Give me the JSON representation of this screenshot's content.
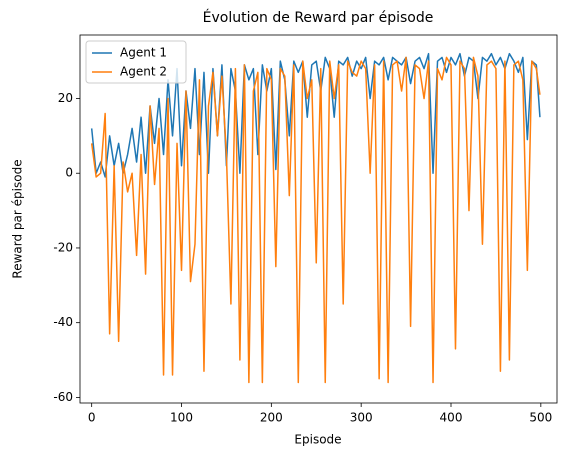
{
  "chart_data": {
    "type": "line",
    "title": "Évolution de Reward par épisode",
    "xlabel": "Episode",
    "ylabel": "Reward par épisode",
    "x": [
      0,
      5,
      10,
      15,
      20,
      25,
      30,
      35,
      40,
      45,
      50,
      55,
      60,
      65,
      70,
      75,
      80,
      85,
      90,
      95,
      100,
      105,
      110,
      115,
      120,
      125,
      130,
      135,
      140,
      145,
      150,
      155,
      160,
      165,
      170,
      175,
      180,
      185,
      190,
      195,
      200,
      205,
      210,
      215,
      220,
      225,
      230,
      235,
      240,
      245,
      250,
      255,
      260,
      265,
      270,
      275,
      280,
      285,
      290,
      295,
      300,
      305,
      310,
      315,
      320,
      325,
      330,
      335,
      340,
      345,
      350,
      355,
      360,
      365,
      370,
      375,
      380,
      385,
      390,
      395,
      400,
      405,
      410,
      415,
      420,
      425,
      430,
      435,
      440,
      445,
      450,
      455,
      460,
      465,
      470,
      475,
      480,
      485,
      490,
      495,
      499
    ],
    "series": [
      {
        "name": "Agent 1",
        "color": "#1f77b4",
        "values": [
          12,
          0,
          3,
          -1,
          10,
          2,
          8,
          0,
          5,
          12,
          3,
          15,
          0,
          18,
          8,
          20,
          5,
          25,
          10,
          28,
          2,
          22,
          12,
          28,
          5,
          27,
          0,
          28,
          10,
          29,
          2,
          28,
          22,
          0,
          29,
          25,
          28,
          5,
          29,
          22,
          28,
          1,
          30,
          25,
          10,
          30,
          27,
          30,
          15,
          29,
          30,
          22,
          31,
          28,
          15,
          30,
          29,
          31,
          26,
          30,
          28,
          31,
          20,
          30,
          29,
          31,
          25,
          31,
          30,
          29,
          31,
          24,
          30,
          31,
          28,
          32,
          0,
          30,
          31,
          27,
          31,
          29,
          32,
          26,
          31,
          30,
          20,
          31,
          30,
          32,
          29,
          31,
          28,
          32,
          30,
          27,
          31,
          9,
          30,
          29,
          15
        ]
      },
      {
        "name": "Agent 2",
        "color": "#ff7f0e",
        "values": [
          8,
          -1,
          0,
          16,
          -43,
          2,
          -45,
          3,
          -5,
          0,
          -22,
          5,
          -27,
          18,
          -3,
          12,
          -54,
          20,
          -54,
          8,
          -26,
          22,
          -29,
          -19,
          25,
          -53,
          18,
          27,
          10,
          26,
          5,
          -35,
          28,
          -50,
          29,
          -56,
          22,
          27,
          -56,
          28,
          25,
          -25,
          28,
          26,
          -6,
          29,
          -56,
          30,
          20,
          25,
          -24,
          28,
          -56,
          30,
          20,
          29,
          -35,
          30,
          27,
          26,
          30,
          28,
          0,
          29,
          -55,
          30,
          -56,
          29,
          30,
          22,
          31,
          -41,
          29,
          28,
          20,
          30,
          -56,
          28,
          25,
          31,
          29,
          -47,
          30,
          28,
          -10,
          31,
          26,
          -19,
          29,
          30,
          28,
          -53,
          30,
          -50,
          29,
          30,
          25,
          -26,
          30,
          28,
          21
        ]
      }
    ],
    "xlim": [
      -13,
      518
    ],
    "ylim": [
      -61.5,
      37
    ],
    "xticks": [
      0,
      100,
      200,
      300,
      400,
      500
    ],
    "yticks": [
      -60,
      -40,
      -20,
      0,
      20
    ],
    "legend": "upper left"
  }
}
